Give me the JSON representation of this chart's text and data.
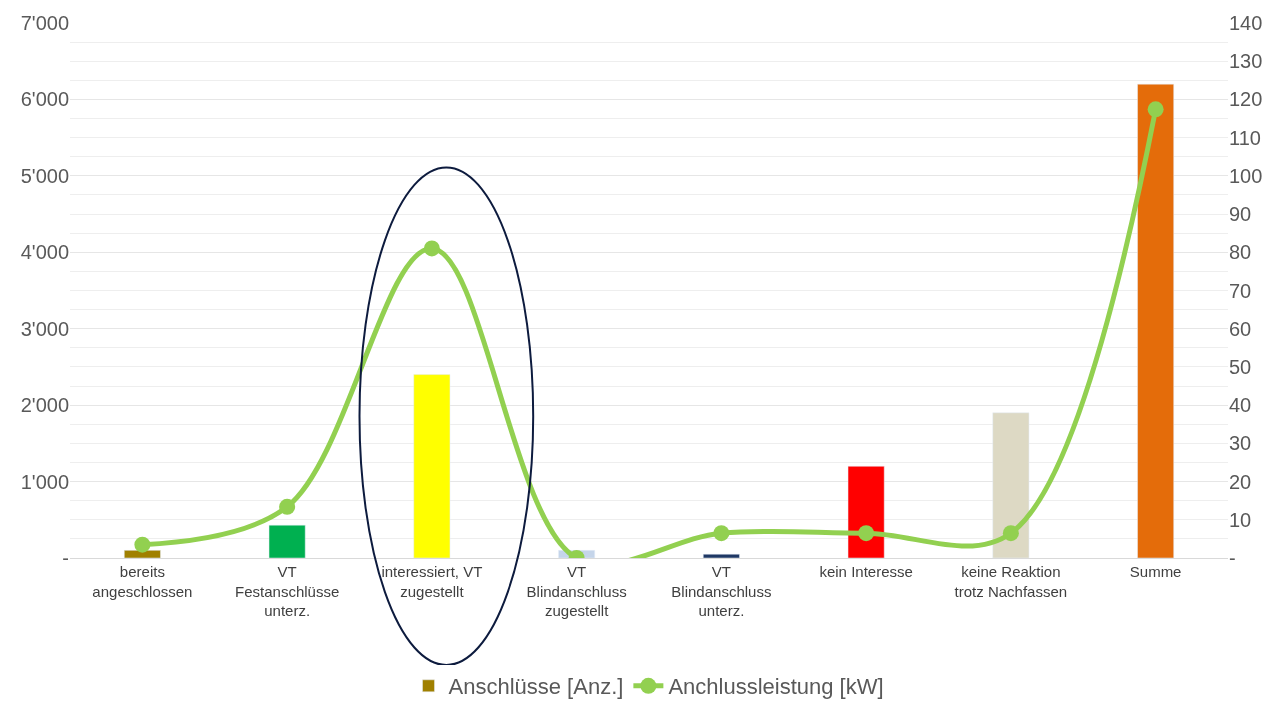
{
  "chart_data": {
    "type": "bar",
    "categories": [
      "bereits\nangeschlossen",
      "VT\nFestanschlüsse\nunterz.",
      "interessiert, VT\nzugestellt",
      "VT\nBlindanschluss\nzugestellt",
      "VT\nBlindanschluss\nunterz.",
      "kein Interesse",
      "keine Reaktion\ntrotz Nachfassen",
      "Summe"
    ],
    "series": [
      {
        "name": "Anschlüsse [Anz.]",
        "colors": [
          "#a08000",
          "#00b050",
          "#ffff00",
          "#c5d5ea",
          "#1f3864",
          "#ff0000",
          "#ddd9c4",
          "#e46c0a"
        ],
        "values": [
          100,
          430,
          2400,
          100,
          50,
          1200,
          1900,
          6200
        ]
      },
      {
        "name": "Anchlussleistung [kW]",
        "type": "line",
        "axis": "y2",
        "color": "#92d050",
        "marker": "circle",
        "values": [
          3.5,
          13.4,
          81,
          0,
          6.5,
          6.5,
          6.5,
          117.4
        ]
      }
    ],
    "ylim": [
      0,
      7000
    ],
    "yticks": [
      {
        "value": 0,
        "label": "-"
      },
      {
        "value": 1000,
        "label": "1'000"
      },
      {
        "value": 2000,
        "label": "2'000"
      },
      {
        "value": 3000,
        "label": "3'000"
      },
      {
        "value": 4000,
        "label": "4'000"
      },
      {
        "value": 5000,
        "label": "5'000"
      },
      {
        "value": 6000,
        "label": "6'000"
      },
      {
        "value": 7000,
        "label": "7'000"
      }
    ],
    "y2lim": [
      0,
      140
    ],
    "y2ticks": [
      {
        "value": 0,
        "label": "-"
      },
      10,
      20,
      30,
      40,
      50,
      60,
      70,
      80,
      90,
      100,
      110,
      120,
      130,
      140
    ],
    "grid": "y",
    "legend": "bottom"
  }
}
